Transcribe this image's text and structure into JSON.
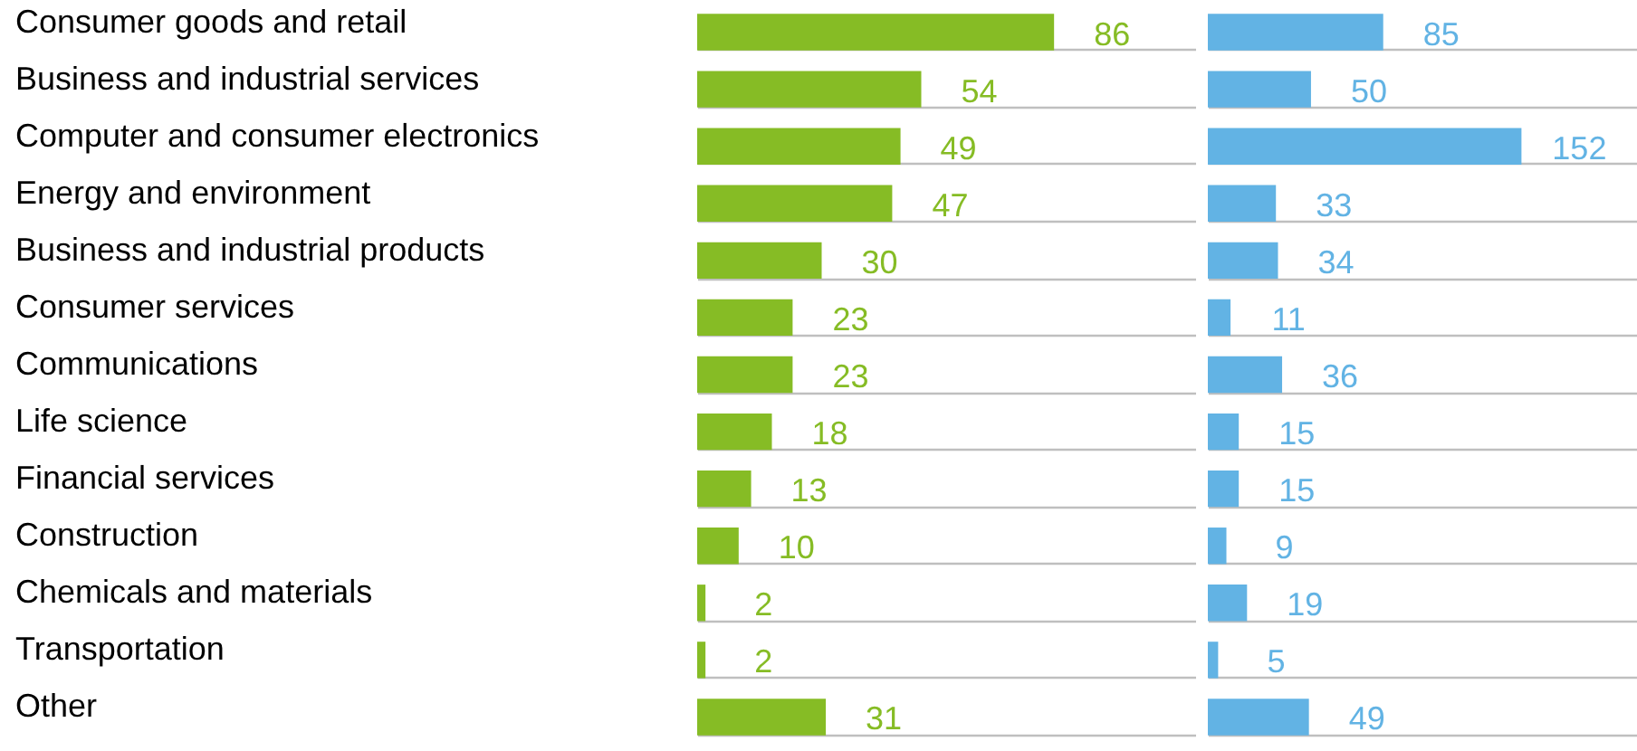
{
  "chart_data": [
    {
      "type": "bar",
      "orientation": "horizontal",
      "categories": [
        "Consumer goods and retail",
        "Business and industrial services",
        "Computer and consumer electronics",
        "Energy and environment",
        "Business and industrial products",
        "Consumer services",
        "Communications",
        "Life science",
        "Financial services",
        "Construction",
        "Chemicals and materials",
        "Transportation",
        "Other"
      ],
      "values": [
        86,
        54,
        49,
        47,
        30,
        23,
        23,
        18,
        13,
        10,
        2,
        2,
        31
      ],
      "color": "#86bc25",
      "xlim": [
        0,
        120
      ],
      "data_labels": true,
      "grid": "y",
      "tick_labels": "y"
    },
    {
      "type": "bar",
      "orientation": "horizontal",
      "categories": [
        null,
        null,
        null,
        null,
        null,
        null,
        null,
        null,
        null,
        null,
        null,
        null,
        null
      ],
      "values": [
        85,
        50,
        152,
        33,
        34,
        11,
        36,
        15,
        15,
        9,
        19,
        5,
        49
      ],
      "color": "#62b3e4",
      "xlim": [
        0,
        208
      ],
      "data_labels": true,
      "grid": "y",
      "tick_labels": false
    }
  ]
}
